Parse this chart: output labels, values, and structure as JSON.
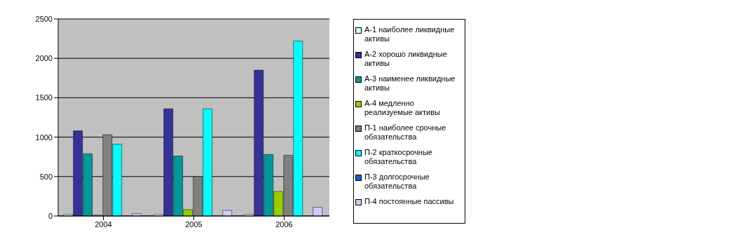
{
  "chart_data": {
    "type": "bar",
    "categories": [
      "2004",
      "2005",
      "2006"
    ],
    "series": [
      {
        "name": "А-1 наиболее ликвидные активы",
        "color": "#ccffff",
        "values": [
          20,
          20,
          20
        ]
      },
      {
        "name": "А-2 хорошо ликвидные активы",
        "color": "#333399",
        "values": [
          1080,
          1360,
          1850
        ]
      },
      {
        "name": "А-3 наименее ликвидные активы",
        "color": "#009999",
        "values": [
          790,
          760,
          780
        ]
      },
      {
        "name": "А-4 медленно реализуемые активы",
        "color": "#99cc00",
        "values": [
          10,
          80,
          310
        ]
      },
      {
        "name": "П-1 наиболее срочные обязательства",
        "color": "#808080",
        "values": [
          1030,
          500,
          770
        ]
      },
      {
        "name": "П-2 краткосрочные обязательства",
        "color": "#00ffff",
        "values": [
          910,
          1360,
          2220
        ]
      },
      {
        "name": "П-3 долгосрочные обязательства",
        "color": "#0066cc",
        "values": [
          0,
          0,
          0
        ]
      },
      {
        "name": "П-4 постоянные пассивы",
        "color": "#ccccff",
        "values": [
          30,
          70,
          110
        ]
      }
    ],
    "ylim": [
      0,
      2500
    ],
    "yticks": [
      0,
      500,
      1000,
      1500,
      2000,
      2500
    ],
    "grid": "y",
    "legend": "right"
  }
}
